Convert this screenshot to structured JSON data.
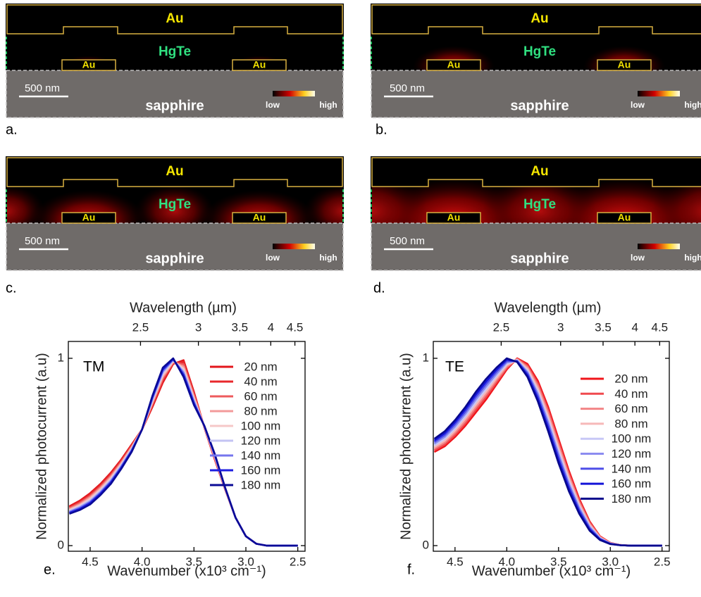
{
  "panels": [
    {
      "label": "a.",
      "top_metal": "Au",
      "layer": "HgTe",
      "contacts": [
        "Au",
        "Au"
      ],
      "scale_bar": "500 nm",
      "substrate": "sapphire",
      "colorbar_low": "low",
      "colorbar_high": "high"
    },
    {
      "label": "b.",
      "top_metal": "Au",
      "layer": "HgTe",
      "contacts": [
        "Au",
        "Au"
      ],
      "scale_bar": "500 nm",
      "substrate": "sapphire",
      "colorbar_low": "low",
      "colorbar_high": "high"
    },
    {
      "label": "c.",
      "top_metal": "Au",
      "layer": "HgTe",
      "contacts": [
        "Au",
        "Au"
      ],
      "scale_bar": "500 nm",
      "substrate": "sapphire",
      "colorbar_low": "low",
      "colorbar_high": "high"
    },
    {
      "label": "d.",
      "top_metal": "Au",
      "layer": "HgTe",
      "contacts": [
        "Au",
        "Au"
      ],
      "scale_bar": "500 nm",
      "substrate": "sapphire",
      "colorbar_low": "low",
      "colorbar_high": "high"
    }
  ],
  "chart_data": [
    {
      "type": "line",
      "panel_label": "e.",
      "annotation": "TM",
      "x_label": "Wavenumber (x10³ cm⁻¹)",
      "x2_label": "Wavelength (µm)",
      "y_label": "Normalized photocurrent (a.u)",
      "x": [
        4.7,
        4.6,
        4.5,
        4.4,
        4.3,
        4.2,
        4.1,
        4.0,
        3.9,
        3.8,
        3.7,
        3.6,
        3.5,
        3.4,
        3.3,
        3.2,
        3.1,
        3.0,
        2.9,
        2.8,
        2.7,
        2.6,
        2.5
      ],
      "xlim": [
        4.71,
        2.43
      ],
      "xticks": [
        4.5,
        {
          "value": 4,
          "label": "4.0"
        },
        3.5,
        {
          "value": 3,
          "label": "3.0"
        },
        2.5
      ],
      "x2scale": "reciprocal",
      "x2lim": [
        2.07,
        4.75
      ],
      "x2ticks": [
        2.5,
        3,
        3.5,
        4,
        4.5
      ],
      "ylim": [
        -0.03,
        1.09
      ],
      "yticks": [
        0,
        1
      ],
      "series": [
        {
          "name": "20 nm",
          "color": "#e3161b",
          "values": [
            0.21,
            0.24,
            0.28,
            0.33,
            0.39,
            0.46,
            0.54,
            0.62,
            0.74,
            0.87,
            0.97,
            0.99,
            0.82,
            0.63,
            0.46,
            0.3,
            0.15,
            0.05,
            0.01,
            0,
            0,
            0,
            0
          ]
        },
        {
          "name": "40 nm",
          "color": "#e8282c",
          "values": [
            0.205,
            0.234,
            0.273,
            0.323,
            0.383,
            0.454,
            0.535,
            0.62,
            0.748,
            0.88,
            0.974,
            0.979,
            0.811,
            0.631,
            0.464,
            0.301,
            0.15,
            0.05,
            0.01,
            0,
            0,
            0,
            0
          ]
        },
        {
          "name": "60 nm",
          "color": "#ee5a5c",
          "values": [
            0.2,
            0.228,
            0.265,
            0.315,
            0.375,
            0.448,
            0.53,
            0.62,
            0.755,
            0.89,
            0.978,
            0.968,
            0.803,
            0.633,
            0.468,
            0.303,
            0.15,
            0.05,
            0.01,
            0,
            0,
            0,
            0
          ]
        },
        {
          "name": "80 nm",
          "color": "#f39a9a",
          "values": [
            0.195,
            0.221,
            0.258,
            0.308,
            0.368,
            0.441,
            0.525,
            0.62,
            0.763,
            0.9,
            0.981,
            0.956,
            0.794,
            0.634,
            0.471,
            0.304,
            0.15,
            0.05,
            0.01,
            0,
            0,
            0,
            0
          ]
        },
        {
          "name": "100 nm",
          "color": "#f6c8c8",
          "values": [
            0.19,
            0.215,
            0.25,
            0.3,
            0.36,
            0.435,
            0.52,
            0.62,
            0.77,
            0.91,
            0.985,
            0.945,
            0.785,
            0.635,
            0.475,
            0.305,
            0.15,
            0.05,
            0.01,
            0,
            0,
            0,
            0
          ]
        },
        {
          "name": "120 nm",
          "color": "#c3c3f3",
          "values": [
            0.185,
            0.209,
            0.243,
            0.293,
            0.353,
            0.429,
            0.515,
            0.62,
            0.778,
            0.92,
            0.989,
            0.934,
            0.776,
            0.636,
            0.479,
            0.306,
            0.15,
            0.05,
            0.01,
            0,
            0,
            0,
            0
          ]
        },
        {
          "name": "140 nm",
          "color": "#7676ee",
          "values": [
            0.18,
            0.203,
            0.235,
            0.285,
            0.345,
            0.423,
            0.51,
            0.62,
            0.785,
            0.93,
            0.993,
            0.923,
            0.768,
            0.638,
            0.483,
            0.308,
            0.15,
            0.05,
            0.01,
            0,
            0,
            0,
            0
          ]
        },
        {
          "name": "160 nm",
          "color": "#1c1ce0",
          "values": [
            0.175,
            0.196,
            0.228,
            0.278,
            0.338,
            0.416,
            0.505,
            0.62,
            0.793,
            0.94,
            0.996,
            0.911,
            0.759,
            0.639,
            0.486,
            0.309,
            0.15,
            0.05,
            0.01,
            0,
            0,
            0,
            0
          ]
        },
        {
          "name": "180 nm",
          "color": "#0a0a96",
          "values": [
            0.17,
            0.19,
            0.22,
            0.27,
            0.33,
            0.41,
            0.5,
            0.62,
            0.8,
            0.95,
            1.0,
            0.9,
            0.75,
            0.64,
            0.49,
            0.31,
            0.15,
            0.05,
            0.01,
            0,
            0,
            0,
            0
          ]
        }
      ]
    },
    {
      "type": "line",
      "panel_label": "f.",
      "annotation": "TE",
      "x_label": "Wavenumber (x10³ cm⁻¹)",
      "x2_label": "Wavelength (µm)",
      "y_label": "Normalized photocurrent (a.u)",
      "x": [
        4.7,
        4.6,
        4.5,
        4.4,
        4.3,
        4.2,
        4.1,
        4.0,
        3.9,
        3.8,
        3.7,
        3.6,
        3.5,
        3.4,
        3.3,
        3.2,
        3.1,
        3.0,
        2.9,
        2.8,
        2.7,
        2.6,
        2.5
      ],
      "xlim": [
        4.71,
        2.43
      ],
      "xticks": [
        4.5,
        {
          "value": 4,
          "label": "4.0"
        },
        3.5,
        {
          "value": 3,
          "label": "3.0"
        },
        2.5
      ],
      "x2scale": "reciprocal",
      "x2lim": [
        2.1,
        4.73
      ],
      "x2ticks": [
        2.5,
        3,
        3.5,
        4,
        4.5
      ],
      "ylim": [
        -0.03,
        1.09
      ],
      "yticks": [
        0,
        1
      ],
      "series": [
        {
          "name": "20 nm",
          "color": "#f0141a",
          "values": [
            0.5,
            0.53,
            0.58,
            0.64,
            0.71,
            0.78,
            0.86,
            0.94,
            1.0,
            0.97,
            0.88,
            0.74,
            0.57,
            0.4,
            0.25,
            0.13,
            0.05,
            0.015,
            0.003,
            0,
            0,
            0,
            0
          ]
        },
        {
          "name": "40 nm",
          "color": "#f04a4e",
          "values": [
            0.509,
            0.54,
            0.591,
            0.653,
            0.724,
            0.794,
            0.871,
            0.948,
            0.998,
            0.961,
            0.866,
            0.724,
            0.554,
            0.386,
            0.24,
            0.124,
            0.048,
            0.014,
            0.003,
            0,
            0,
            0,
            0
          ]
        },
        {
          "name": "60 nm",
          "color": "#f28486",
          "values": [
            0.518,
            0.55,
            0.603,
            0.665,
            0.738,
            0.808,
            0.883,
            0.955,
            0.995,
            0.953,
            0.853,
            0.708,
            0.538,
            0.373,
            0.23,
            0.118,
            0.045,
            0.013,
            0.003,
            0,
            0,
            0,
            0
          ]
        },
        {
          "name": "80 nm",
          "color": "#f6b8b8",
          "values": [
            0.526,
            0.56,
            0.614,
            0.678,
            0.751,
            0.821,
            0.894,
            0.963,
            0.993,
            0.944,
            0.839,
            0.691,
            0.521,
            0.359,
            0.22,
            0.111,
            0.043,
            0.012,
            0.003,
            0,
            0,
            0,
            0
          ]
        },
        {
          "name": "100 nm",
          "color": "#c8c8f6",
          "values": [
            0.535,
            0.57,
            0.625,
            0.69,
            0.765,
            0.835,
            0.905,
            0.97,
            0.99,
            0.935,
            0.825,
            0.675,
            0.505,
            0.345,
            0.21,
            0.105,
            0.04,
            0.012,
            0.002,
            0,
            0,
            0,
            0
          ]
        },
        {
          "name": "120 nm",
          "color": "#8c8cf0",
          "values": [
            0.544,
            0.58,
            0.636,
            0.703,
            0.779,
            0.849,
            0.916,
            0.978,
            0.988,
            0.926,
            0.811,
            0.659,
            0.489,
            0.331,
            0.2,
            0.099,
            0.038,
            0.011,
            0.002,
            0,
            0,
            0,
            0
          ]
        },
        {
          "name": "140 nm",
          "color": "#4e4ee8",
          "values": [
            0.553,
            0.59,
            0.648,
            0.715,
            0.793,
            0.863,
            0.928,
            0.985,
            0.985,
            0.918,
            0.798,
            0.643,
            0.473,
            0.318,
            0.19,
            0.093,
            0.035,
            0.01,
            0.002,
            0,
            0,
            0,
            0
          ]
        },
        {
          "name": "160 nm",
          "color": "#1414d8",
          "values": [
            0.561,
            0.6,
            0.659,
            0.728,
            0.806,
            0.876,
            0.939,
            0.993,
            0.983,
            0.909,
            0.784,
            0.626,
            0.456,
            0.304,
            0.18,
            0.086,
            0.033,
            0.009,
            0.002,
            0,
            0,
            0,
            0
          ]
        },
        {
          "name": "180 nm",
          "color": "#08088c",
          "values": [
            0.57,
            0.61,
            0.67,
            0.74,
            0.82,
            0.89,
            0.95,
            1.0,
            0.98,
            0.9,
            0.77,
            0.61,
            0.44,
            0.29,
            0.17,
            0.08,
            0.03,
            0.008,
            0.002,
            0,
            0,
            0,
            0
          ]
        }
      ]
    }
  ]
}
